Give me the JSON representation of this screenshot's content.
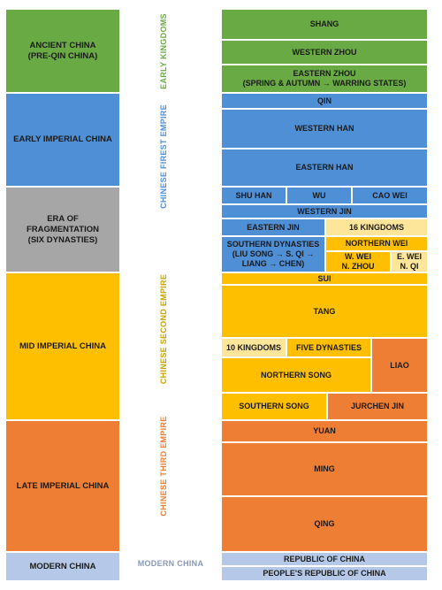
{
  "eras": [
    {
      "label": "Ancient China\n(Pre-Qin China)"
    },
    {
      "label": "Early Imperial China"
    },
    {
      "label": "Era of\nFragmentation\n(Six Dynasties)"
    },
    {
      "label": "Mid Imperial China"
    },
    {
      "label": "Late Imperial China"
    },
    {
      "label": "Modern China"
    }
  ],
  "empires": [
    {
      "label": "Early Kingdoms",
      "color": "#6aaa44"
    },
    {
      "label": "Chinese Firest Empire",
      "color": "#4f8fd6"
    },
    {
      "label": "Chinese Second Empire",
      "color": "#c9a200"
    },
    {
      "label": "Chinese Third Empire",
      "color": "#ee7e34"
    },
    {
      "label": "Modern China",
      "color": "#8a99b8"
    }
  ],
  "dynasties": [
    {
      "label": "Shang"
    },
    {
      "label": "Western Zhou"
    },
    {
      "label": "Eastern Zhou\n(Spring & Autumn → Warring States)"
    },
    {
      "label": "Qin"
    },
    {
      "label": "Western Han"
    },
    {
      "label": "Eastern Han"
    },
    {
      "label": "Shu Han"
    },
    {
      "label": "Wu"
    },
    {
      "label": "Cao Wei"
    },
    {
      "label": "Western Jin"
    },
    {
      "label": "Eastern Jin"
    },
    {
      "label": "16 Kingdoms"
    },
    {
      "label": "Southern Dynasties\n(Liu Song → S. Qi →\nLiang → Chen)"
    },
    {
      "label": "Northern Wei"
    },
    {
      "label": "W. Wei\nN. Zhou"
    },
    {
      "label": "E. Wei\nN. Qi"
    },
    {
      "label": "Sui"
    },
    {
      "label": "Tang"
    },
    {
      "label": "10 Kingdoms"
    },
    {
      "label": "Five Dynasties"
    },
    {
      "label": "Liao"
    },
    {
      "label": "Northern Song"
    },
    {
      "label": "Southern Song"
    },
    {
      "label": "Jurchen Jin"
    },
    {
      "label": "Yuan"
    },
    {
      "label": "Ming"
    },
    {
      "label": "Qing"
    },
    {
      "label": "Republic of China"
    },
    {
      "label": "People's Republic of China"
    }
  ]
}
